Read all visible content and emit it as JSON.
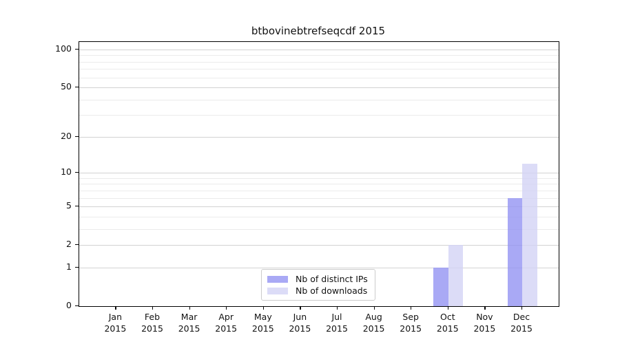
{
  "chart_data": {
    "type": "bar",
    "title": "btbovinebtrefseqcdf 2015",
    "scale": "log1p",
    "grid": true,
    "legend_position": "lower center",
    "year": "2015",
    "categories": [
      "Jan",
      "Feb",
      "Mar",
      "Apr",
      "May",
      "Jun",
      "Jul",
      "Aug",
      "Sep",
      "Oct",
      "Nov",
      "Dec"
    ],
    "series": [
      {
        "name": "Nb of distinct IPs",
        "display_color": "#a9a9f5",
        "fill": "rgba(148,148,243,0.8)",
        "values": [
          0,
          0,
          0,
          0,
          0,
          0,
          0,
          0,
          0,
          1,
          0,
          6
        ]
      },
      {
        "name": "Nb of downloads",
        "display_color": "#dcdcf7",
        "fill": "rgba(211,211,245,0.8)",
        "values": [
          0,
          0,
          0,
          0,
          0,
          0,
          0,
          0,
          0,
          2,
          0,
          12
        ]
      }
    ],
    "y_ticks": [
      0,
      1,
      2,
      5,
      10,
      20,
      50,
      100
    ],
    "y_tick_labels": [
      "0",
      "1",
      "2",
      "5",
      "10",
      "20",
      "50",
      "100"
    ],
    "y_minor_gridlines": [
      3,
      4,
      6,
      7,
      8,
      9,
      30,
      40,
      60,
      70,
      80,
      90
    ],
    "ylim": [
      0,
      115
    ],
    "colors": {
      "axis": "#000000",
      "grid_major": "#d2d2d2",
      "grid_minor": "#ebebeb",
      "text": "#111111"
    }
  }
}
